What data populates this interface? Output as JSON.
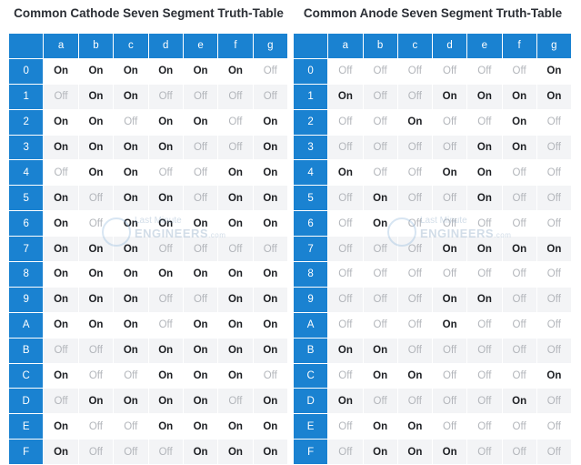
{
  "left": {
    "title": "Common Cathode Seven Segment Truth-Table",
    "headers": [
      "a",
      "b",
      "c",
      "d",
      "e",
      "f",
      "g"
    ],
    "rows": [
      {
        "label": "0",
        "cells": [
          "On",
          "On",
          "On",
          "On",
          "On",
          "On",
          "Off"
        ]
      },
      {
        "label": "1",
        "cells": [
          "Off",
          "On",
          "On",
          "Off",
          "Off",
          "Off",
          "Off"
        ]
      },
      {
        "label": "2",
        "cells": [
          "On",
          "On",
          "Off",
          "On",
          "On",
          "Off",
          "On"
        ]
      },
      {
        "label": "3",
        "cells": [
          "On",
          "On",
          "On",
          "On",
          "Off",
          "Off",
          "On"
        ]
      },
      {
        "label": "4",
        "cells": [
          "Off",
          "On",
          "On",
          "Off",
          "Off",
          "On",
          "On"
        ]
      },
      {
        "label": "5",
        "cells": [
          "On",
          "Off",
          "On",
          "On",
          "Off",
          "On",
          "On"
        ]
      },
      {
        "label": "6",
        "cells": [
          "On",
          "Off",
          "On",
          "On",
          "On",
          "On",
          "On"
        ]
      },
      {
        "label": "7",
        "cells": [
          "On",
          "On",
          "On",
          "Off",
          "Off",
          "Off",
          "Off"
        ]
      },
      {
        "label": "8",
        "cells": [
          "On",
          "On",
          "On",
          "On",
          "On",
          "On",
          "On"
        ]
      },
      {
        "label": "9",
        "cells": [
          "On",
          "On",
          "On",
          "Off",
          "Off",
          "On",
          "On"
        ]
      },
      {
        "label": "A",
        "cells": [
          "On",
          "On",
          "On",
          "Off",
          "On",
          "On",
          "On"
        ]
      },
      {
        "label": "B",
        "cells": [
          "Off",
          "Off",
          "On",
          "On",
          "On",
          "On",
          "On"
        ]
      },
      {
        "label": "C",
        "cells": [
          "On",
          "Off",
          "Off",
          "On",
          "On",
          "On",
          "Off"
        ]
      },
      {
        "label": "D",
        "cells": [
          "Off",
          "On",
          "On",
          "On",
          "On",
          "Off",
          "On"
        ]
      },
      {
        "label": "E",
        "cells": [
          "On",
          "Off",
          "Off",
          "On",
          "On",
          "On",
          "On"
        ]
      },
      {
        "label": "F",
        "cells": [
          "On",
          "Off",
          "Off",
          "Off",
          "On",
          "On",
          "On"
        ]
      }
    ]
  },
  "right": {
    "title": "Common Anode Seven Segment Truth-Table",
    "headers": [
      "a",
      "b",
      "c",
      "d",
      "e",
      "f",
      "g"
    ],
    "rows": [
      {
        "label": "0",
        "cells": [
          "Off",
          "Off",
          "Off",
          "Off",
          "Off",
          "Off",
          "On"
        ]
      },
      {
        "label": "1",
        "cells": [
          "On",
          "Off",
          "Off",
          "On",
          "On",
          "On",
          "On"
        ]
      },
      {
        "label": "2",
        "cells": [
          "Off",
          "Off",
          "On",
          "Off",
          "Off",
          "On",
          "Off"
        ]
      },
      {
        "label": "3",
        "cells": [
          "Off",
          "Off",
          "Off",
          "Off",
          "On",
          "On",
          "Off"
        ]
      },
      {
        "label": "4",
        "cells": [
          "On",
          "Off",
          "Off",
          "On",
          "On",
          "Off",
          "Off"
        ]
      },
      {
        "label": "5",
        "cells": [
          "Off",
          "On",
          "Off",
          "Off",
          "On",
          "Off",
          "Off"
        ]
      },
      {
        "label": "6",
        "cells": [
          "Off",
          "On",
          "Off",
          "Off",
          "Off",
          "Off",
          "Off"
        ]
      },
      {
        "label": "7",
        "cells": [
          "Off",
          "Off",
          "Off",
          "On",
          "On",
          "On",
          "On"
        ]
      },
      {
        "label": "8",
        "cells": [
          "Off",
          "Off",
          "Off",
          "Off",
          "Off",
          "Off",
          "Off"
        ]
      },
      {
        "label": "9",
        "cells": [
          "Off",
          "Off",
          "Off",
          "On",
          "On",
          "Off",
          "Off"
        ]
      },
      {
        "label": "A",
        "cells": [
          "Off",
          "Off",
          "Off",
          "On",
          "Off",
          "Off",
          "Off"
        ]
      },
      {
        "label": "B",
        "cells": [
          "On",
          "On",
          "Off",
          "Off",
          "Off",
          "Off",
          "Off"
        ]
      },
      {
        "label": "C",
        "cells": [
          "Off",
          "On",
          "On",
          "Off",
          "Off",
          "Off",
          "On"
        ]
      },
      {
        "label": "D",
        "cells": [
          "On",
          "Off",
          "Off",
          "Off",
          "Off",
          "On",
          "Off"
        ]
      },
      {
        "label": "E",
        "cells": [
          "Off",
          "On",
          "On",
          "Off",
          "Off",
          "Off",
          "Off"
        ]
      },
      {
        "label": "F",
        "cells": [
          "Off",
          "On",
          "On",
          "On",
          "Off",
          "Off",
          "Off"
        ]
      }
    ]
  },
  "watermark": {
    "line1": "Last Minute",
    "line2": "ENGINEERS",
    "suffix": ".com"
  },
  "colors": {
    "header_blue": "#1a82d1",
    "on_text": "#1d1f23",
    "off_text": "#b3b6bb",
    "stripe": "#f3f4f6"
  }
}
